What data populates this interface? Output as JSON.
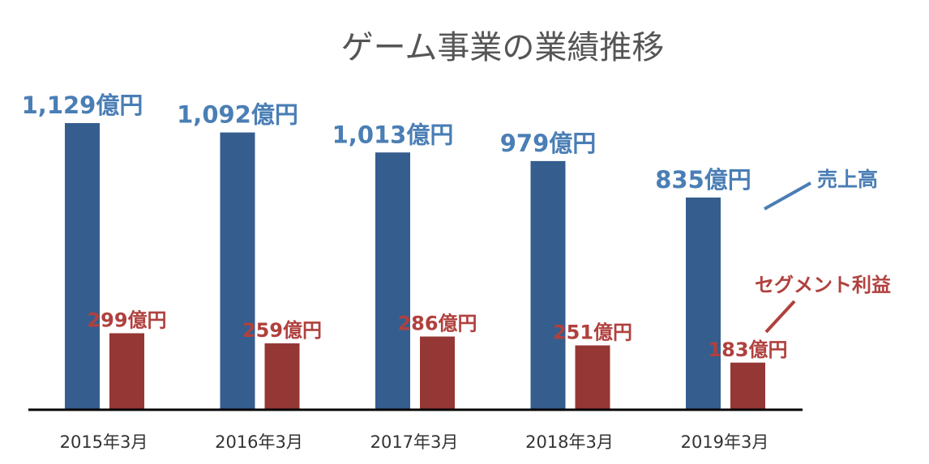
{
  "chart_data": {
    "type": "bar",
    "title": "ゲーム事業の業績推移",
    "categories": [
      "2015年3月",
      "2016年3月",
      "2017年3月",
      "2018年3月",
      "2019年3月"
    ],
    "series": [
      {
        "name": "売上高",
        "values": [
          1129,
          1092,
          1013,
          979,
          835
        ],
        "labels": [
          "1,129億円",
          "1,092億円",
          "1,013億円",
          "979億円",
          "835億円"
        ],
        "color": "#355E8F",
        "label_color": "#4A7EB5"
      },
      {
        "name": "セグメント利益",
        "values": [
          299,
          259,
          286,
          251,
          183
        ],
        "labels": [
          "299億円",
          "259億円",
          "286億円",
          "251億円",
          "183億円"
        ],
        "color": "#953735",
        "label_color": "#B0413E"
      }
    ],
    "ylim": [
      0,
      1150
    ],
    "grid": false,
    "legend": "right"
  }
}
